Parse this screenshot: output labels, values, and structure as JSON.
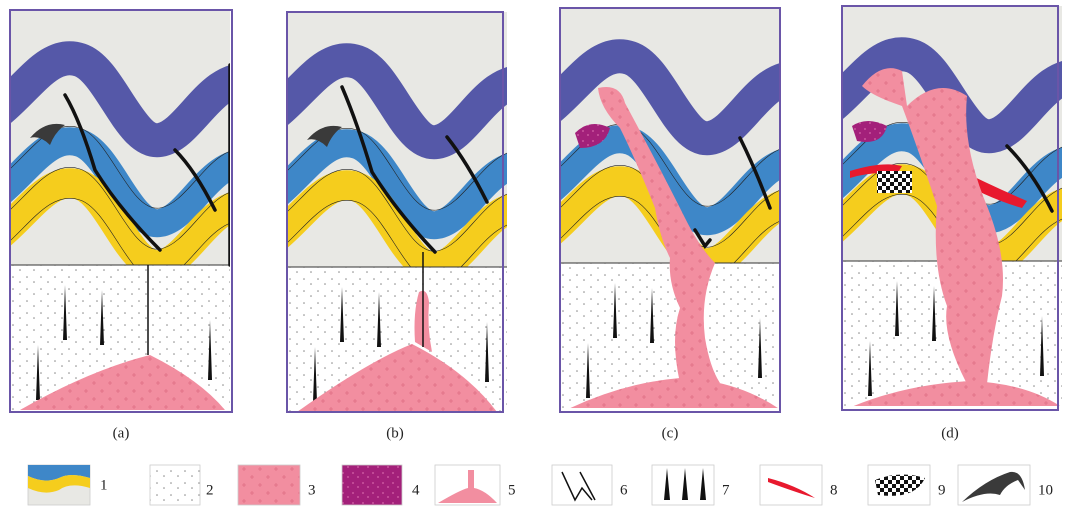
{
  "panels": [
    {
      "label": "(a)"
    },
    {
      "label": "(b)"
    },
    {
      "label": "(c)"
    },
    {
      "label": "(d)"
    }
  ],
  "legend": [
    {
      "label": "1"
    },
    {
      "label": "2"
    },
    {
      "label": "3"
    },
    {
      "label": "4"
    },
    {
      "label": "5"
    },
    {
      "label": "6"
    },
    {
      "label": "7"
    },
    {
      "label": "8"
    },
    {
      "label": "9"
    },
    {
      "label": "10"
    }
  ]
}
